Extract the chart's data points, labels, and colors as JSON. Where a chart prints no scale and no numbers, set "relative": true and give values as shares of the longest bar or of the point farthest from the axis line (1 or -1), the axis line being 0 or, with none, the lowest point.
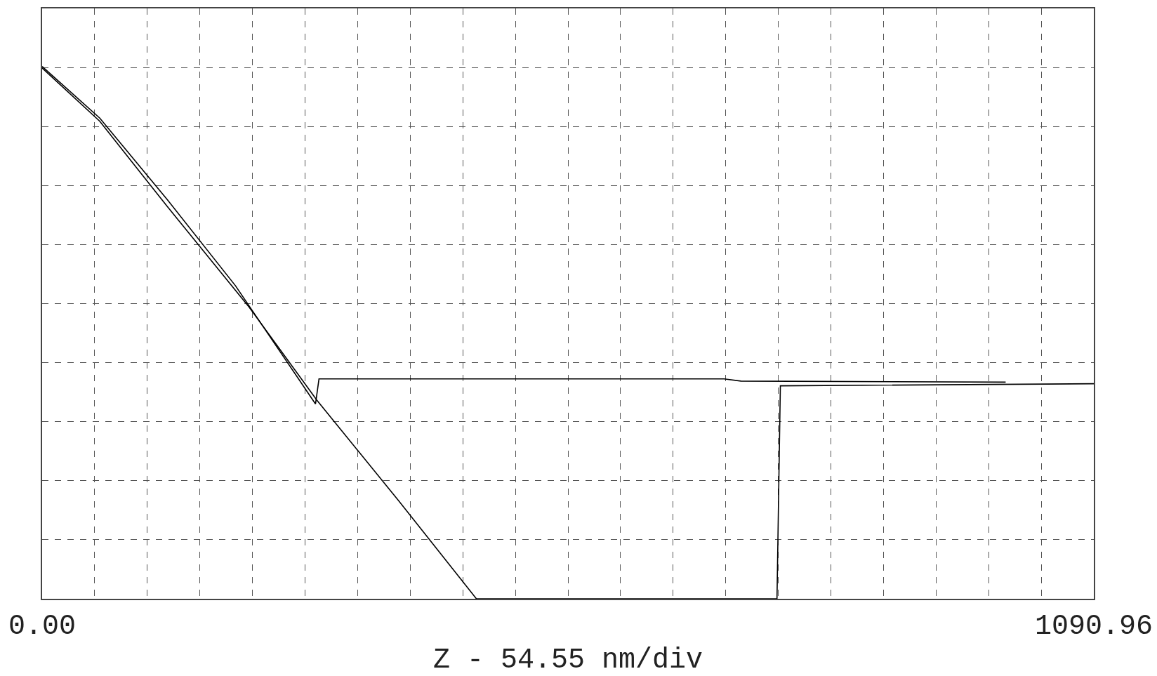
{
  "chart_data": {
    "type": "line",
    "relative": true,
    "xlabel": "Z - 54.55 nm/div",
    "xlim": [
      0,
      1090.96
    ],
    "xticks": [
      {
        "value": 0,
        "label": "0.00"
      },
      {
        "value": 54.55,
        "label": null
      },
      {
        "value": 109.1,
        "label": null
      },
      {
        "value": 163.64,
        "label": null
      },
      {
        "value": 218.19,
        "label": null
      },
      {
        "value": 272.74,
        "label": null
      },
      {
        "value": 327.29,
        "label": null
      },
      {
        "value": 381.84,
        "label": null
      },
      {
        "value": 436.38,
        "label": null
      },
      {
        "value": 490.93,
        "label": null
      },
      {
        "value": 545.48,
        "label": null
      },
      {
        "value": 600.03,
        "label": null
      },
      {
        "value": 654.58,
        "label": null
      },
      {
        "value": 709.12,
        "label": null
      },
      {
        "value": 763.67,
        "label": null
      },
      {
        "value": 818.22,
        "label": null
      },
      {
        "value": 872.77,
        "label": null
      },
      {
        "value": 927.32,
        "label": null
      },
      {
        "value": 981.86,
        "label": null
      },
      {
        "value": 1036.41,
        "label": null
      },
      {
        "value": 1090.96,
        "label": "1090.96"
      }
    ],
    "grid": true,
    "line_style": "solid",
    "marker": "none",
    "tick_labels": "x",
    "series": [
      {
        "color": "#000000",
        "x": [
          0,
          59.8,
          130.2,
          200.6,
          283.6,
          287.2,
          707.4,
          724.9,
          999.5
        ],
        "values": [
          1,
          0.903,
          0.749,
          0.588,
          0.366,
          0.413,
          0.413,
          0.409,
          0.407
        ]
      },
      {
        "color": "#000000",
        "x": [
          0,
          59.8,
          130.2,
          214.7,
          285.1,
          369.5,
          450.5,
          762.3,
          765.8,
          1090.96
        ],
        "values": [
          0.997,
          0.897,
          0.736,
          0.548,
          0.373,
          0.185,
          0,
          0,
          0.4,
          0.404
        ]
      }
    ]
  }
}
